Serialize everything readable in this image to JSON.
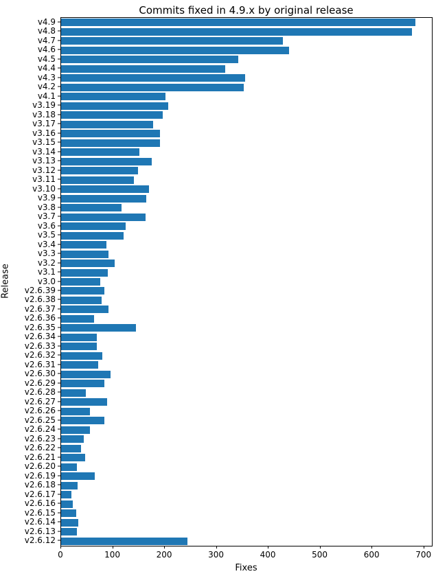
{
  "chart_data": {
    "type": "bar",
    "orientation": "horizontal",
    "title": "Commits fixed in 4.9.x by original release",
    "xlabel": "Fixes",
    "ylabel": "Release",
    "xlim": [
      0,
      715
    ],
    "xticks": [
      0,
      100,
      200,
      300,
      400,
      500,
      600,
      700
    ],
    "grid": false,
    "legend": null,
    "bar_color": "#1f77b4",
    "categories": [
      "v4.9",
      "v4.8",
      "v4.7",
      "v4.6",
      "v4.5",
      "v4.4",
      "v4.3",
      "v4.2",
      "v4.1",
      "v3.19",
      "v3.18",
      "v3.17",
      "v3.16",
      "v3.15",
      "v3.14",
      "v3.13",
      "v3.12",
      "v3.11",
      "v3.10",
      "v3.9",
      "v3.8",
      "v3.7",
      "v3.6",
      "v3.5",
      "v3.4",
      "v3.3",
      "v3.2",
      "v3.1",
      "v3.0",
      "v2.6.39",
      "v2.6.38",
      "v2.6.37",
      "v2.6.36",
      "v2.6.35",
      "v2.6.34",
      "v2.6.33",
      "v2.6.32",
      "v2.6.31",
      "v2.6.30",
      "v2.6.29",
      "v2.6.28",
      "v2.6.27",
      "v2.6.26",
      "v2.6.25",
      "v2.6.24",
      "v2.6.23",
      "v2.6.22",
      "v2.6.21",
      "v2.6.20",
      "v2.6.19",
      "v2.6.18",
      "v2.6.17",
      "v2.6.16",
      "v2.6.15",
      "v2.6.14",
      "v2.6.13",
      "v2.6.12"
    ],
    "values": [
      683,
      677,
      428,
      440,
      342,
      317,
      355,
      352,
      201,
      206,
      196,
      178,
      191,
      191,
      151,
      175,
      148,
      141,
      170,
      164,
      117,
      163,
      125,
      120,
      88,
      92,
      103,
      90,
      76,
      84,
      78,
      91,
      64,
      144,
      69,
      69,
      80,
      71,
      95,
      83,
      48,
      89,
      55,
      84,
      55,
      44,
      38,
      46,
      31,
      65,
      32,
      20,
      22,
      29,
      33,
      31,
      244
    ]
  }
}
